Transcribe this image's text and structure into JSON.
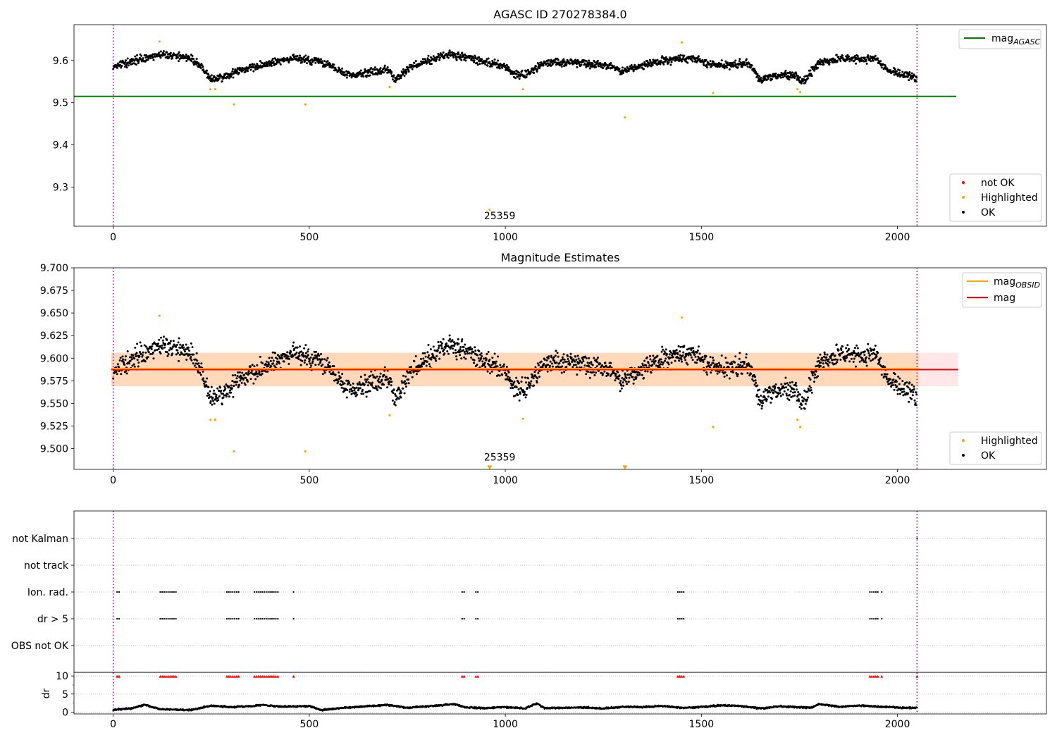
{
  "chart_data": [
    {
      "type": "scatter",
      "title": "AGASC ID 270278384.0",
      "xlim": [
        -100,
        2380
      ],
      "ylim": [
        9.207,
        9.685
      ],
      "xticks": [
        "0",
        "500",
        "1000",
        "1500",
        "2000"
      ],
      "yticks": [
        "9.3",
        "9.4",
        "9.5",
        "9.6"
      ],
      "vlines": [
        0,
        2050
      ],
      "hline": {
        "y": 9.515,
        "x_end": 2150,
        "label": "mag",
        "label_sub": "AGASC"
      },
      "annotation": {
        "text": "25359",
        "x": 1000,
        "y": 9.22
      },
      "legend_top": [
        {
          "label": "mag",
          "sub": "AGASC",
          "color": "#008000"
        }
      ],
      "legend_bottom": [
        {
          "label": "not OK",
          "color": "#ff0000"
        },
        {
          "label": "Highlighted",
          "color": "#ffa500"
        },
        {
          "label": "OK",
          "color": "#000000"
        }
      ],
      "series": [
        {
          "name": "OK",
          "color": "#000000",
          "n": 2050,
          "profile_x": [
            0,
            60,
            120,
            200,
            230,
            250,
            280,
            320,
            360,
            420,
            460,
            530,
            560,
            600,
            640,
            700,
            720,
            760,
            820,
            860,
            900,
            960,
            1000,
            1030,
            1060,
            1100,
            1180,
            1250,
            1300,
            1330,
            1380,
            1440,
            1480,
            1520,
            1580,
            1620,
            1650,
            1700,
            1740,
            1760,
            1800,
            1860,
            1940,
            1980,
            2050
          ],
          "profile_y": [
            9.585,
            9.6,
            9.615,
            9.605,
            9.58,
            9.555,
            9.56,
            9.575,
            9.585,
            9.6,
            9.605,
            9.598,
            9.585,
            9.565,
            9.57,
            9.58,
            9.555,
            9.585,
            9.605,
            9.615,
            9.608,
            9.595,
            9.585,
            9.565,
            9.57,
            9.595,
            9.595,
            9.59,
            9.575,
            9.585,
            9.595,
            9.605,
            9.605,
            9.59,
            9.59,
            9.595,
            9.555,
            9.565,
            9.565,
            9.55,
            9.595,
            9.605,
            9.605,
            9.575,
            9.56
          ],
          "spread": 0.011
        },
        {
          "name": "Highlighted",
          "color": "#ffa500",
          "x": [
            118,
            248,
            260,
            308,
            490,
            705,
            960,
            1045,
            1305,
            1450,
            1530,
            1745,
            1752
          ],
          "y": [
            9.645,
            9.532,
            9.532,
            9.496,
            9.496,
            9.537,
            9.246,
            9.532,
            9.465,
            9.643,
            9.523,
            9.532,
            9.525
          ]
        }
      ]
    },
    {
      "type": "scatter",
      "title": "Magnitude Estimates",
      "xlim": [
        -100,
        2380
      ],
      "ylim": [
        9.477,
        9.7
      ],
      "xticks": [
        "0",
        "500",
        "1000",
        "1500",
        "2000"
      ],
      "yticks": [
        "9.500",
        "9.525",
        "9.550",
        "9.575",
        "9.600",
        "9.625",
        "9.650",
        "9.675",
        "9.700"
      ],
      "vlines": [
        0,
        2050
      ],
      "bands": [
        {
          "y0": 9.569,
          "y1": 9.606,
          "x0": -5,
          "x1": 2155,
          "color": "#ffb6c1",
          "opacity": 0.35
        },
        {
          "y0": 9.569,
          "y1": 9.606,
          "x0": -5,
          "x1": 2055,
          "color": "#ffa500",
          "opacity": 0.2
        }
      ],
      "lines": [
        {
          "y": 9.5875,
          "x0": -5,
          "x1": 2155,
          "color": "#ff0000",
          "label": "mag"
        },
        {
          "y": 9.5885,
          "x0": -5,
          "x1": 2055,
          "color": "#ffa500",
          "label": "mag",
          "sub": "OBSID"
        }
      ],
      "annotation": {
        "text": "25359",
        "x": 1000,
        "y": 9.485
      },
      "markers_down": {
        "x": [
          960,
          1305
        ],
        "y": 9.479,
        "color": "#ffa500"
      },
      "legend_top": [
        {
          "label": "mag",
          "sub": "OBSID",
          "color": "#ffa500"
        },
        {
          "label": "mag",
          "sub": "",
          "color": "#ff0000"
        }
      ],
      "legend_bottom": [
        {
          "label": "Highlighted",
          "color": "#ffa500"
        },
        {
          "label": "OK",
          "color": "#000000"
        }
      ],
      "series": [
        {
          "name": "OK",
          "color": "#000000",
          "same_as_panel": 0,
          "spread_scale": 1.2
        },
        {
          "name": "Highlighted",
          "color": "#ffa500",
          "x": [
            118,
            248,
            260,
            308,
            490,
            705,
            1045,
            1450,
            1530,
            1745,
            1752
          ],
          "y": [
            9.647,
            9.532,
            9.532,
            9.497,
            9.497,
            9.537,
            9.533,
            9.645,
            9.524,
            9.532,
            9.524
          ]
        }
      ]
    },
    {
      "type": "scatter",
      "title": "",
      "xlim": [
        -100,
        2380
      ],
      "xticks": [
        "0",
        "500",
        "1000",
        "1500",
        "2000"
      ],
      "vlines": [
        0,
        2050
      ],
      "flag_rows": [
        "not Kalman",
        "not track",
        "Ion. rad.",
        "dr > 5",
        "OBS not OK"
      ],
      "flag_events_x": [
        10,
        15,
        120,
        125,
        130,
        135,
        140,
        145,
        150,
        155,
        160,
        290,
        295,
        300,
        305,
        310,
        315,
        320,
        360,
        365,
        370,
        375,
        380,
        385,
        390,
        395,
        400,
        405,
        410,
        415,
        420,
        460,
        890,
        895,
        925,
        930,
        1440,
        1445,
        1450,
        1455,
        1930,
        1935,
        1940,
        1945,
        1950,
        1960
      ],
      "flag_rows_with_events": [
        "Ion. rad.",
        "dr > 5"
      ],
      "not_kalman_x": [
        2050
      ],
      "dr_yticks": [
        "0",
        "5",
        "10"
      ],
      "dr_ylabel": "dr",
      "dr_ylim": [
        -0.5,
        11
      ],
      "dr_clip": 9.9,
      "dr_profile_x": [
        0,
        50,
        80,
        120,
        200,
        250,
        300,
        350,
        380,
        430,
        500,
        530,
        600,
        700,
        750,
        800,
        870,
        900,
        950,
        1000,
        1050,
        1080,
        1100,
        1200,
        1250,
        1300,
        1350,
        1400,
        1450,
        1500,
        1550,
        1600,
        1650,
        1700,
        1780,
        1800,
        1850,
        1900,
        1950,
        2000,
        2050
      ],
      "dr_profile_y": [
        0.6,
        1.1,
        2.1,
        0.8,
        0.6,
        1.8,
        1.4,
        1.6,
        2.0,
        1.5,
        1.7,
        0.6,
        1.3,
        2.0,
        1.2,
        1.6,
        2.2,
        1.3,
        1.1,
        1.4,
        1.0,
        2.4,
        1.1,
        1.3,
        1.0,
        1.5,
        1.4,
        1.7,
        1.2,
        1.4,
        1.9,
        1.7,
        1.0,
        1.6,
        1.2,
        2.3,
        1.5,
        1.8,
        1.6,
        1.2,
        1.2
      ]
    }
  ]
}
